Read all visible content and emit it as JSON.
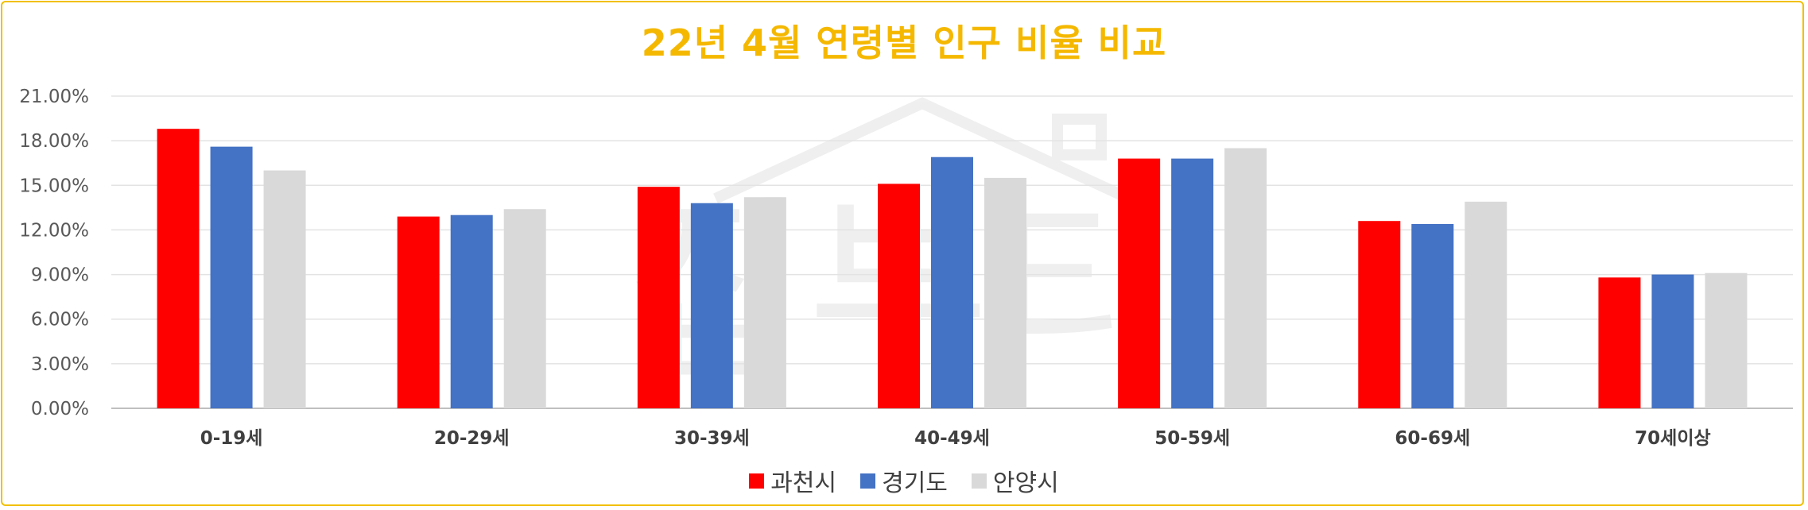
{
  "chart_data": {
    "type": "bar",
    "title": "22년 4월 연령별 인구 비율 비교",
    "categories": [
      "0-19세",
      "20-29세",
      "30-39세",
      "40-49세",
      "50-59세",
      "60-69세",
      "70세이상"
    ],
    "series": [
      {
        "name": "과천시",
        "color": "#ff0000",
        "values": [
          18.8,
          12.9,
          14.9,
          15.1,
          16.8,
          12.6,
          8.8
        ]
      },
      {
        "name": "경기도",
        "color": "#4472c4",
        "values": [
          17.6,
          13.0,
          13.8,
          16.9,
          16.8,
          12.4,
          9.0
        ]
      },
      {
        "name": "안양시",
        "color": "#d9d9d9",
        "values": [
          16.0,
          13.4,
          14.2,
          15.5,
          17.5,
          13.9,
          9.1
        ]
      }
    ],
    "ylim": [
      0,
      21
    ],
    "yticks": [
      0,
      3,
      6,
      9,
      12,
      15,
      18,
      21
    ],
    "ytick_labels": [
      "0.00%",
      "3.00%",
      "6.00%",
      "9.00%",
      "12.00%",
      "15.00%",
      "18.00%",
      "21.00%"
    ],
    "grid": true,
    "legend_position": "bottom"
  },
  "watermark_text": "집부티"
}
